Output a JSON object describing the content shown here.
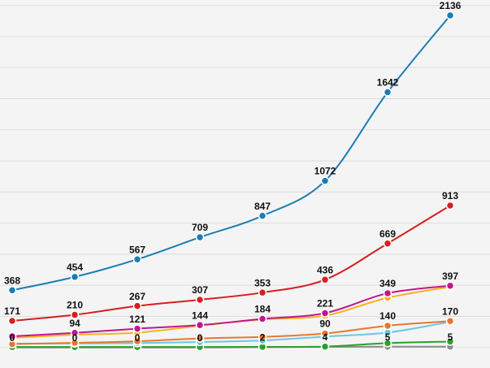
{
  "chart_data": {
    "type": "line",
    "categories": [
      null,
      null,
      null,
      null,
      null,
      null,
      null,
      null
    ],
    "ylim": [
      -132,
      2235
    ],
    "yticks": [
      0,
      200,
      400,
      600,
      800,
      1000,
      1200,
      1400,
      1600,
      1800,
      2000,
      2200
    ],
    "grid": true,
    "series": [
      {
        "color": "#1b7db3",
        "values": [
          368,
          454,
          567,
          709,
          847,
          1072,
          1642,
          2136
        ],
        "value_labels": [
          "368",
          "454",
          "567",
          "709",
          "847",
          "1072",
          "1642",
          "2136"
        ]
      },
      {
        "color": "#d71f1f",
        "values": [
          171,
          210,
          267,
          307,
          353,
          436,
          669,
          913
        ],
        "value_labels": [
          "171",
          "210",
          "267",
          "307",
          "353",
          "436",
          "669",
          "913"
        ]
      },
      {
        "color": "#c2168e",
        "values": [
          72,
          94,
          121,
          144,
          184,
          221,
          349,
          397
        ],
        "value_labels": [
          null,
          "94",
          "121",
          "144",
          "184",
          "221",
          "349",
          "397"
        ]
      },
      {
        "color": "#f2b51c",
        "values": [
          62,
          82,
          95,
          140,
          180,
          205,
          320,
          390
        ],
        "value_labels": [
          null,
          null,
          null,
          null,
          null,
          null,
          null,
          null
        ]
      },
      {
        "color": "#e8772e",
        "values": [
          22,
          30,
          40,
          58,
          68,
          90,
          140,
          170
        ],
        "value_labels": [
          null,
          null,
          null,
          null,
          null,
          "90",
          "140",
          "170"
        ]
      },
      {
        "color": "#6cc7e6",
        "values": [
          25,
          26,
          28,
          35,
          45,
          70,
          96,
          165
        ],
        "value_labels": [
          null,
          null,
          null,
          null,
          null,
          null,
          null,
          null
        ]
      },
      {
        "color": "#2ca02c",
        "values": [
          3,
          3,
          3,
          3,
          4,
          6,
          28,
          38
        ],
        "value_labels": [
          null,
          null,
          null,
          null,
          null,
          null,
          null,
          null
        ]
      },
      {
        "color": "#8c8c8c",
        "values": [
          0,
          0,
          0,
          0,
          2,
          4,
          5,
          5
        ],
        "value_labels": [
          "0",
          "0",
          "0",
          "0",
          "2",
          "4",
          "5",
          "5"
        ]
      }
    ]
  }
}
